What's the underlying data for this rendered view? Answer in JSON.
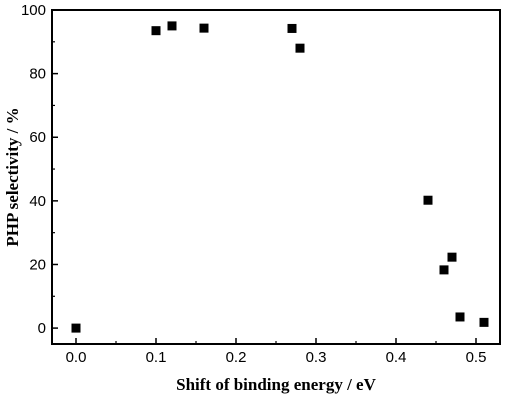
{
  "chart_data": {
    "type": "scatter",
    "xlabel": "Shift of binding energy / eV",
    "ylabel": "PHP selectivity / %",
    "xlim": [
      -0.03,
      0.53
    ],
    "ylim": [
      -5,
      100
    ],
    "x_ticks": [
      0.0,
      0.1,
      0.2,
      0.3,
      0.4,
      0.5
    ],
    "x_tick_labels": [
      "0.0",
      "0.1",
      "0.2",
      "0.3",
      "0.4",
      "0.5"
    ],
    "y_ticks": [
      0,
      20,
      40,
      60,
      80,
      100
    ],
    "y_tick_labels": [
      "0",
      "20",
      "40",
      "60",
      "80",
      "100"
    ],
    "grid": false,
    "marker": "square",
    "marker_color": "#000000",
    "series": [
      {
        "points": [
          {
            "x": 0.0,
            "y": 0.0
          },
          {
            "x": 0.1,
            "y": 93.5
          },
          {
            "x": 0.12,
            "y": 95.0
          },
          {
            "x": 0.16,
            "y": 94.3
          },
          {
            "x": 0.27,
            "y": 94.2
          },
          {
            "x": 0.28,
            "y": 88.0
          },
          {
            "x": 0.44,
            "y": 40.2
          },
          {
            "x": 0.46,
            "y": 18.3
          },
          {
            "x": 0.47,
            "y": 22.3
          },
          {
            "x": 0.48,
            "y": 3.5
          },
          {
            "x": 0.51,
            "y": 1.8
          }
        ]
      }
    ]
  }
}
